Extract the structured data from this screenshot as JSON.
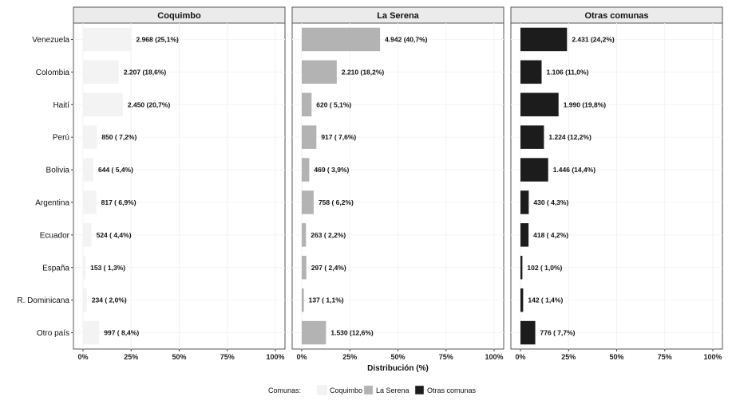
{
  "chart_data": {
    "type": "bar",
    "orientation": "horizontal",
    "facets": [
      "Coquimbo",
      "La Serena",
      "Otras comunas"
    ],
    "categories": [
      "Venezuela",
      "Colombia",
      "Haití",
      "Perú",
      "Bolivia",
      "Argentina",
      "Ecuador",
      "España",
      "R. Dominicana",
      "Otro país"
    ],
    "series": [
      {
        "name": "Coquimbo",
        "color": "#f3f3f3",
        "values": [
          25.1,
          18.6,
          20.7,
          7.2,
          5.4,
          6.9,
          4.4,
          1.3,
          2.0,
          8.4
        ],
        "labels": [
          "2.968 (25,1%)",
          "2.207 (18,6%)",
          "2.450 (20,7%)",
          "850 ( 7,2%)",
          "644 ( 5,4%)",
          "817 ( 6,9%)",
          "524 ( 4,4%)",
          "153 ( 1,3%)",
          "234 ( 2,0%)",
          "997 ( 8,4%)"
        ]
      },
      {
        "name": "La Serena",
        "color": "#b3b3b3",
        "values": [
          40.7,
          18.2,
          5.1,
          7.6,
          3.9,
          6.2,
          2.2,
          2.4,
          1.1,
          12.6
        ],
        "labels": [
          "4.942 (40,7%)",
          "2.210 (18,2%)",
          "620 ( 5,1%)",
          "917 ( 7,6%)",
          "469 ( 3,9%)",
          "758 ( 6,2%)",
          "263 ( 2,2%)",
          "297 ( 2,4%)",
          "137 ( 1,1%)",
          "1.530 (12,6%)"
        ]
      },
      {
        "name": "Otras comunas",
        "color": "#1c1c1c",
        "values": [
          24.2,
          11.0,
          19.8,
          12.2,
          14.4,
          4.3,
          4.2,
          1.0,
          1.4,
          7.7
        ],
        "labels": [
          "2.431 (24,2%)",
          "1.106 (11,0%)",
          "1.990 (19,8%)",
          "1.224 (12,2%)",
          "1.446 (14,4%)",
          "430 ( 4,3%)",
          "418 ( 4,2%)",
          "102 ( 1,0%)",
          "142 ( 1,4%)",
          "776 ( 7,7%)"
        ]
      }
    ],
    "xlabel": "Distribución (%)",
    "ylabel": "",
    "xlim": [
      0,
      100
    ],
    "xticks": [
      "0%",
      "25%",
      "50%",
      "75%",
      "100%"
    ],
    "grid": true,
    "legend": {
      "title": "Comunas:",
      "position": "bottom",
      "items": [
        "Coquimbo",
        "La Serena",
        "Otras comunas"
      ]
    }
  }
}
